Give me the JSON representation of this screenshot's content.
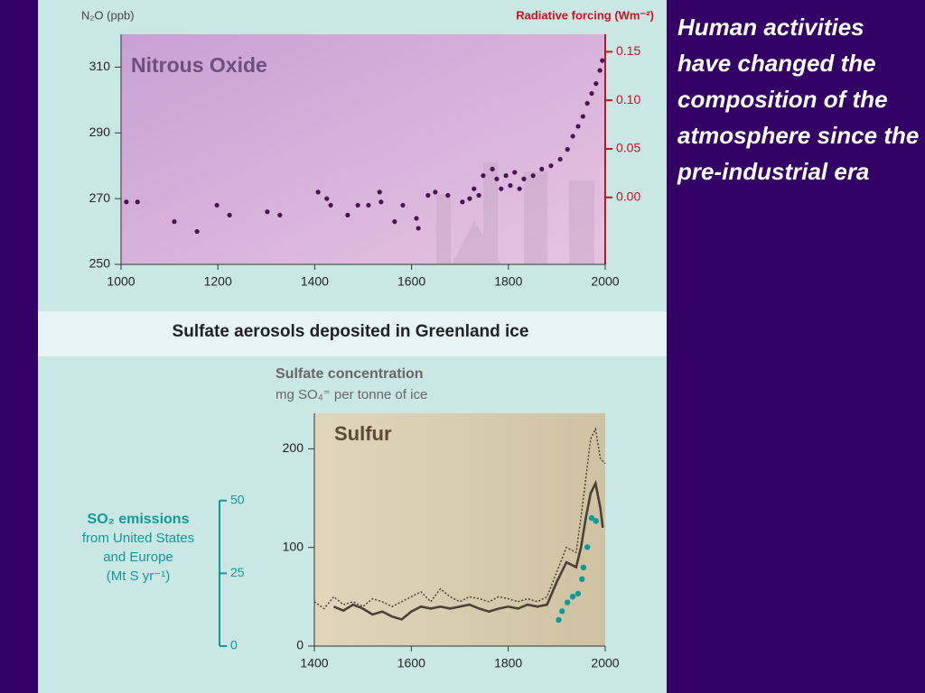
{
  "slide": {
    "caption": "Human activities have changed the composition of the atmosphere since the pre-industrial era"
  },
  "chart_data": [
    {
      "type": "scatter",
      "title": "Nitrous Oxide",
      "ylabel": "N₂O (ppb)",
      "y2label": "Radiative forcing (Wm⁻²)",
      "x": [
        1011,
        1034,
        1110,
        1157,
        1198,
        1224,
        1302,
        1328,
        1407,
        1425,
        1433,
        1468,
        1489,
        1511,
        1534,
        1537,
        1565,
        1582,
        1610,
        1614,
        1634,
        1649,
        1675,
        1705,
        1720,
        1729,
        1739,
        1748,
        1767,
        1776,
        1785,
        1795,
        1804,
        1813,
        1823,
        1832,
        1851,
        1869,
        1888,
        1907,
        1922,
        1933,
        1944,
        1954,
        1963,
        1972,
        1981,
        1989,
        1994
      ],
      "values": [
        269,
        269,
        263,
        260,
        268,
        265,
        266,
        265,
        272,
        270,
        268,
        265,
        268,
        268,
        272,
        269,
        263,
        268,
        264,
        261,
        271,
        272,
        271,
        269,
        270,
        273,
        271,
        277,
        279,
        276,
        273,
        277,
        274,
        278,
        273,
        276,
        277,
        279,
        280,
        282,
        285,
        289,
        292,
        295,
        299,
        302,
        305,
        309,
        312
      ],
      "color": "#4a1450",
      "xlim": [
        1000,
        2000
      ],
      "xticks": [
        1000,
        1200,
        1400,
        1600,
        1800,
        2000
      ],
      "ylim": [
        250,
        320
      ],
      "yticks": [
        250,
        270,
        290,
        310
      ],
      "y2lim": [
        -0.069,
        0.168
      ],
      "y2ticks": [
        {
          "value": 0,
          "label": "0.00"
        },
        {
          "value": 0.05,
          "label": "0.05"
        },
        {
          "value": 0.1,
          "label": "0.10"
        },
        {
          "value": 0.15,
          "label": "0.15"
        }
      ]
    },
    {
      "type": "line",
      "title": "Sulfate aerosols deposited in Greenland ice",
      "subtitle": "Sulfate concentration",
      "ylabel": "mg SO₄⁼ per tonne of ice",
      "annotation": "Sulfur",
      "y2label": [
        "SO₂ emissions",
        "from United States",
        "and Europe",
        "(Mt S yr⁻¹)"
      ],
      "series": [
        {
          "style": "solid",
          "color": "#4a4038",
          "x": [
            1440,
            1460,
            1480,
            1500,
            1520,
            1540,
            1560,
            1580,
            1600,
            1620,
            1640,
            1660,
            1680,
            1700,
            1720,
            1740,
            1760,
            1780,
            1800,
            1820,
            1840,
            1860,
            1880,
            1900,
            1920,
            1940,
            1950,
            1960,
            1970,
            1980,
            1990,
            1995
          ],
          "values": [
            40,
            36,
            42,
            38,
            32,
            35,
            30,
            27,
            35,
            40,
            38,
            40,
            38,
            40,
            42,
            38,
            35,
            38,
            40,
            38,
            42,
            40,
            42,
            65,
            85,
            80,
            100,
            130,
            155,
            165,
            140,
            120
          ]
        },
        {
          "style": "dotted",
          "color": "#4a4038",
          "x": [
            1400,
            1420,
            1440,
            1460,
            1480,
            1500,
            1520,
            1540,
            1560,
            1580,
            1600,
            1620,
            1640,
            1660,
            1680,
            1700,
            1720,
            1740,
            1760,
            1780,
            1800,
            1820,
            1840,
            1860,
            1880,
            1900,
            1920,
            1940,
            1950,
            1960,
            1970,
            1980,
            1990,
            2000
          ],
          "values": [
            45,
            38,
            50,
            42,
            45,
            40,
            48,
            45,
            40,
            45,
            50,
            55,
            45,
            58,
            50,
            45,
            50,
            48,
            45,
            50,
            48,
            45,
            48,
            45,
            50,
            75,
            100,
            95,
            130,
            170,
            210,
            220,
            190,
            185
          ]
        },
        {
          "style": "markers",
          "color": "#0f9a9a",
          "axis": "y2",
          "x": [
            1904,
            1911,
            1922,
            1933,
            1944,
            1952,
            1955,
            1963,
            1972,
            1981
          ],
          "values": [
            9,
            12,
            15,
            17,
            18,
            23,
            27,
            34,
            44,
            43
          ]
        }
      ],
      "xlim": [
        1400,
        2000
      ],
      "xticks": [
        1400,
        1600,
        1800,
        2000
      ],
      "ylim": [
        0,
        236
      ],
      "yticks": [
        0,
        100,
        200
      ],
      "y2lim": [
        0,
        80
      ],
      "y2ticks": [
        0,
        25,
        50
      ]
    }
  ]
}
